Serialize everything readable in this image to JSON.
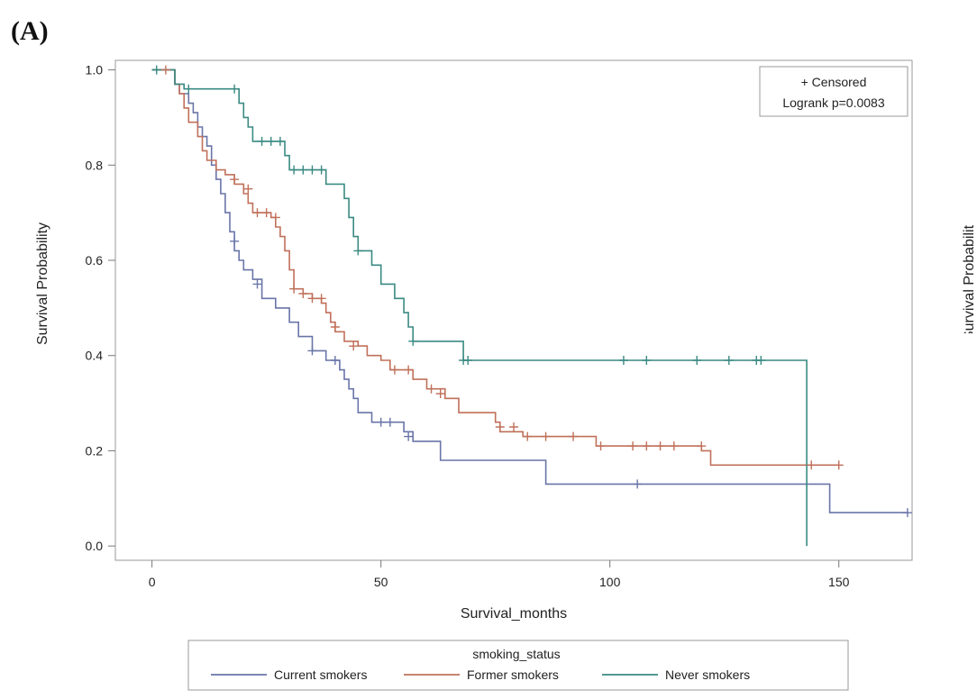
{
  "panel_label": "(A)",
  "chart_data": {
    "type": "line",
    "step": true,
    "xlabel": "Survival_months",
    "ylabel": "Survival Probability",
    "xlim": [
      -8,
      166
    ],
    "ylim": [
      -0.03,
      1.02
    ],
    "xticks": [
      0,
      50,
      100,
      150
    ],
    "yticks": [
      0.0,
      0.2,
      0.4,
      0.6,
      0.8,
      1.0
    ],
    "ytick_labels": [
      "0.0",
      "0.2",
      "0.4",
      "0.6",
      "0.8",
      "1.0"
    ],
    "grid": false,
    "inset_legend": {
      "censored_label": "+ Censored",
      "stat_text": "Logrank p=0.0083",
      "position": "top-right"
    },
    "legend": {
      "title": "smoking_status",
      "position": "bottom-outside"
    },
    "series": [
      {
        "name": "Current smokers",
        "color": "#6a75a8",
        "points": [
          [
            0,
            1.0
          ],
          [
            4,
            1.0
          ],
          [
            5,
            0.97
          ],
          [
            6,
            0.95
          ],
          [
            8,
            0.93
          ],
          [
            9,
            0.91
          ],
          [
            10,
            0.88
          ],
          [
            11,
            0.86
          ],
          [
            12,
            0.84
          ],
          [
            13,
            0.8
          ],
          [
            14,
            0.77
          ],
          [
            15,
            0.74
          ],
          [
            16,
            0.7
          ],
          [
            17,
            0.66
          ],
          [
            18,
            0.62
          ],
          [
            19,
            0.6
          ],
          [
            20,
            0.58
          ],
          [
            22,
            0.56
          ],
          [
            24,
            0.52
          ],
          [
            27,
            0.5
          ],
          [
            30,
            0.47
          ],
          [
            32,
            0.44
          ],
          [
            35,
            0.41
          ],
          [
            38,
            0.39
          ],
          [
            41,
            0.37
          ],
          [
            42,
            0.35
          ],
          [
            43,
            0.33
          ],
          [
            44,
            0.31
          ],
          [
            45,
            0.28
          ],
          [
            48,
            0.26
          ],
          [
            55,
            0.24
          ],
          [
            57,
            0.22
          ],
          [
            63,
            0.18
          ],
          [
            86,
            0.13
          ],
          [
            148,
            0.07
          ],
          [
            165,
            0.07
          ]
        ],
        "censored": [
          [
            18,
            0.64
          ],
          [
            23,
            0.55
          ],
          [
            35,
            0.41
          ],
          [
            40,
            0.39
          ],
          [
            50,
            0.26
          ],
          [
            52,
            0.26
          ],
          [
            56,
            0.23
          ],
          [
            106,
            0.13
          ],
          [
            165,
            0.07
          ]
        ]
      },
      {
        "name": "Former smokers",
        "color": "#c0705a",
        "points": [
          [
            0,
            1.0
          ],
          [
            4,
            1.0
          ],
          [
            5,
            0.97
          ],
          [
            6,
            0.95
          ],
          [
            7,
            0.92
          ],
          [
            8,
            0.89
          ],
          [
            10,
            0.86
          ],
          [
            11,
            0.83
          ],
          [
            12,
            0.81
          ],
          [
            14,
            0.79
          ],
          [
            16,
            0.78
          ],
          [
            18,
            0.76
          ],
          [
            20,
            0.74
          ],
          [
            21,
            0.72
          ],
          [
            22,
            0.7
          ],
          [
            26,
            0.69
          ],
          [
            27,
            0.67
          ],
          [
            28,
            0.65
          ],
          [
            29,
            0.62
          ],
          [
            30,
            0.58
          ],
          [
            31,
            0.54
          ],
          [
            33,
            0.53
          ],
          [
            35,
            0.52
          ],
          [
            37,
            0.51
          ],
          [
            38,
            0.49
          ],
          [
            39,
            0.47
          ],
          [
            40,
            0.45
          ],
          [
            42,
            0.43
          ],
          [
            45,
            0.42
          ],
          [
            47,
            0.4
          ],
          [
            50,
            0.39
          ],
          [
            52,
            0.37
          ],
          [
            57,
            0.35
          ],
          [
            60,
            0.33
          ],
          [
            64,
            0.31
          ],
          [
            67,
            0.28
          ],
          [
            75,
            0.26
          ],
          [
            76,
            0.24
          ],
          [
            81,
            0.23
          ],
          [
            97,
            0.21
          ],
          [
            120,
            0.2
          ],
          [
            122,
            0.17
          ],
          [
            150,
            0.17
          ]
        ],
        "censored": [
          [
            3,
            1.0
          ],
          [
            18,
            0.77
          ],
          [
            21,
            0.75
          ],
          [
            23,
            0.7
          ],
          [
            25,
            0.7
          ],
          [
            27,
            0.69
          ],
          [
            31,
            0.54
          ],
          [
            33,
            0.53
          ],
          [
            35,
            0.52
          ],
          [
            37,
            0.52
          ],
          [
            40,
            0.46
          ],
          [
            44,
            0.42
          ],
          [
            53,
            0.37
          ],
          [
            56,
            0.37
          ],
          [
            61,
            0.33
          ],
          [
            63,
            0.32
          ],
          [
            76,
            0.25
          ],
          [
            79,
            0.25
          ],
          [
            82,
            0.23
          ],
          [
            86,
            0.23
          ],
          [
            92,
            0.23
          ],
          [
            98,
            0.21
          ],
          [
            105,
            0.21
          ],
          [
            108,
            0.21
          ],
          [
            111,
            0.21
          ],
          [
            114,
            0.21
          ],
          [
            120,
            0.21
          ],
          [
            144,
            0.17
          ],
          [
            150,
            0.17
          ]
        ]
      },
      {
        "name": "Never smokers",
        "color": "#3a8a82",
        "points": [
          [
            0,
            1.0
          ],
          [
            4,
            1.0
          ],
          [
            5,
            0.97
          ],
          [
            7,
            0.96
          ],
          [
            18,
            0.96
          ],
          [
            19,
            0.93
          ],
          [
            20,
            0.9
          ],
          [
            21,
            0.88
          ],
          [
            22,
            0.85
          ],
          [
            28,
            0.85
          ],
          [
            29,
            0.82
          ],
          [
            30,
            0.79
          ],
          [
            36,
            0.79
          ],
          [
            38,
            0.76
          ],
          [
            42,
            0.73
          ],
          [
            43,
            0.69
          ],
          [
            44,
            0.65
          ],
          [
            45,
            0.62
          ],
          [
            48,
            0.59
          ],
          [
            50,
            0.55
          ],
          [
            53,
            0.52
          ],
          [
            55,
            0.49
          ],
          [
            56,
            0.46
          ],
          [
            57,
            0.43
          ],
          [
            68,
            0.39
          ],
          [
            143,
            0.39
          ],
          [
            143,
            0.0
          ]
        ],
        "censored": [
          [
            1,
            1.0
          ],
          [
            8,
            0.96
          ],
          [
            18,
            0.96
          ],
          [
            24,
            0.85
          ],
          [
            26,
            0.85
          ],
          [
            28,
            0.85
          ],
          [
            31,
            0.79
          ],
          [
            33,
            0.79
          ],
          [
            35,
            0.79
          ],
          [
            37,
            0.79
          ],
          [
            45,
            0.62
          ],
          [
            57,
            0.43
          ],
          [
            68,
            0.39
          ],
          [
            69,
            0.39
          ],
          [
            103,
            0.39
          ],
          [
            108,
            0.39
          ],
          [
            119,
            0.39
          ],
          [
            126,
            0.39
          ],
          [
            132,
            0.39
          ],
          [
            133,
            0.39
          ]
        ]
      }
    ]
  },
  "cropped_right_ylabel": "Survival Probability"
}
